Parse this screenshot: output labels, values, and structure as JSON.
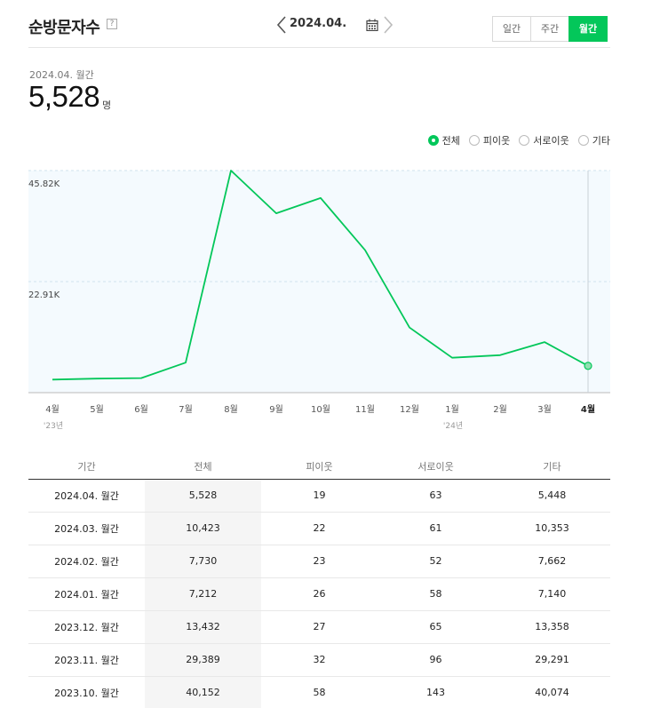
{
  "header": {
    "title": "순방문자수",
    "help_icon": "?",
    "date_label": "2024.04.",
    "prev_icon": "chevron-left-icon",
    "next_icon": "chevron-right-icon",
    "calendar_icon": "calendar-icon"
  },
  "period_tabs": [
    {
      "label": "일간",
      "active": false
    },
    {
      "label": "주간",
      "active": false
    },
    {
      "label": "월간",
      "active": true
    }
  ],
  "summary": {
    "period": "2024.04. 월간",
    "value": "5,528",
    "unit": "명"
  },
  "legend": [
    {
      "label": "전체",
      "selected": true
    },
    {
      "label": "피이웃",
      "selected": false
    },
    {
      "label": "서로이웃",
      "selected": false
    },
    {
      "label": "기타",
      "selected": false
    }
  ],
  "colors": {
    "accent": "#03c75a",
    "chart_bg": "#f4fafe",
    "grid": "#cfe3ee"
  },
  "chart_data": {
    "type": "line",
    "categories": [
      "4월",
      "5월",
      "6월",
      "7월",
      "8월",
      "9월",
      "10월",
      "11월",
      "12월",
      "1월",
      "2월",
      "3월",
      "4월"
    ],
    "year_labels": [
      "'23년",
      "",
      "",
      "",
      "",
      "",
      "",
      "",
      "",
      "'24년",
      "",
      "",
      ""
    ],
    "series": [
      {
        "values": [
          2700,
          2900,
          3000,
          6200,
          45820,
          37000,
          40152,
          29389,
          13432,
          7212,
          7730,
          10423,
          5528
        ]
      }
    ],
    "y_ticks": [
      "22.91K",
      "45.82K"
    ],
    "y_tick_values": [
      22910,
      45820
    ],
    "ylim": [
      0,
      45820
    ],
    "grid": true,
    "highlight_index": 12
  },
  "table": {
    "headers": [
      "기간",
      "전체",
      "피이웃",
      "서로이웃",
      "기타"
    ],
    "rows": [
      [
        "2024.04. 월간",
        "5,528",
        "19",
        "63",
        "5,448"
      ],
      [
        "2024.03. 월간",
        "10,423",
        "22",
        "61",
        "10,353"
      ],
      [
        "2024.02. 월간",
        "7,730",
        "23",
        "52",
        "7,662"
      ],
      [
        "2024.01. 월간",
        "7,212",
        "26",
        "58",
        "7,140"
      ],
      [
        "2023.12. 월간",
        "13,432",
        "27",
        "65",
        "13,358"
      ],
      [
        "2023.11. 월간",
        "29,389",
        "32",
        "96",
        "29,291"
      ],
      [
        "2023.10. 월간",
        "40,152",
        "58",
        "143",
        "40,074"
      ]
    ]
  }
}
